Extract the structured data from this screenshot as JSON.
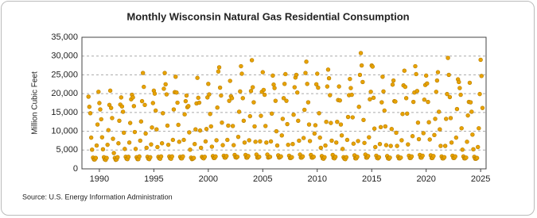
{
  "chart_data": {
    "type": "scatter",
    "title": "Monthly Wisconsin Natural Gas Residential Consumption",
    "y_label": "Million Cubic Feet",
    "source": "Source: U.S. Energy Information Administration",
    "color": "#e8a200",
    "grid": true,
    "xlim": [
      1988.4,
      2025.5
    ],
    "xticks": [
      1990,
      1995,
      2000,
      2005,
      2010,
      2015,
      2020,
      2025
    ],
    "ylim": [
      0,
      35000
    ],
    "yticks": [
      {
        "value": 0,
        "label": "0"
      },
      {
        "value": 5000,
        "label": "5,000"
      },
      {
        "value": 10000,
        "label": "10,000"
      },
      {
        "value": 15000,
        "label": "15,000"
      },
      {
        "value": 20000,
        "label": "20,000"
      },
      {
        "value": 25000,
        "label": "25,000"
      },
      {
        "value": 30000,
        "label": "30,000"
      },
      {
        "value": 35000,
        "label": "35,000"
      }
    ],
    "x": [
      1989.0,
      1989.08,
      1989.17,
      1989.25,
      1989.33,
      1989.42,
      1989.5,
      1989.58,
      1989.67,
      1989.75,
      1989.83,
      1989.92,
      1990.0,
      1990.08,
      1990.17,
      1990.25,
      1990.33,
      1990.42,
      1990.5,
      1990.58,
      1990.67,
      1990.75,
      1990.83,
      1990.92,
      1991.0,
      1991.08,
      1991.17,
      1991.25,
      1991.33,
      1991.42,
      1991.5,
      1991.58,
      1991.67,
      1991.75,
      1991.83,
      1991.92,
      1992.0,
      1992.08,
      1992.17,
      1992.25,
      1992.33,
      1992.42,
      1992.5,
      1992.58,
      1992.67,
      1992.75,
      1992.83,
      1992.92,
      1993.0,
      1993.08,
      1993.17,
      1993.25,
      1993.33,
      1993.42,
      1993.5,
      1993.58,
      1993.67,
      1993.75,
      1993.83,
      1993.92,
      1994.0,
      1994.08,
      1994.17,
      1994.25,
      1994.33,
      1994.42,
      1994.5,
      1994.58,
      1994.67,
      1994.75,
      1994.83,
      1994.92,
      1995.0,
      1995.08,
      1995.17,
      1995.25,
      1995.33,
      1995.42,
      1995.5,
      1995.58,
      1995.67,
      1995.75,
      1995.83,
      1995.92,
      1996.0,
      1996.08,
      1996.17,
      1996.25,
      1996.33,
      1996.42,
      1996.5,
      1996.58,
      1996.67,
      1996.75,
      1996.83,
      1996.92,
      1997.0,
      1997.08,
      1997.17,
      1997.25,
      1997.33,
      1997.42,
      1997.5,
      1997.58,
      1997.67,
      1997.75,
      1997.83,
      1997.92,
      1998.0,
      1998.08,
      1998.17,
      1998.25,
      1998.33,
      1998.42,
      1998.5,
      1998.58,
      1998.67,
      1998.75,
      1998.83,
      1998.92,
      1999.0,
      1999.08,
      1999.17,
      1999.25,
      1999.33,
      1999.42,
      1999.5,
      1999.58,
      1999.67,
      1999.75,
      1999.83,
      1999.92,
      2000.0,
      2000.08,
      2000.17,
      2000.25,
      2000.33,
      2000.42,
      2000.5,
      2000.58,
      2000.67,
      2000.75,
      2000.83,
      2000.92,
      2001.0,
      2001.08,
      2001.17,
      2001.25,
      2001.33,
      2001.42,
      2001.5,
      2001.58,
      2001.67,
      2001.75,
      2001.83,
      2001.92,
      2002.0,
      2002.08,
      2002.17,
      2002.25,
      2002.33,
      2002.42,
      2002.5,
      2002.58,
      2002.67,
      2002.75,
      2002.83,
      2002.92,
      2003.0,
      2003.08,
      2003.17,
      2003.25,
      2003.33,
      2003.42,
      2003.5,
      2003.58,
      2003.67,
      2003.75,
      2003.83,
      2003.92,
      2004.0,
      2004.08,
      2004.17,
      2004.25,
      2004.33,
      2004.42,
      2004.5,
      2004.58,
      2004.67,
      2004.75,
      2004.83,
      2004.92,
      2005.0,
      2005.08,
      2005.17,
      2005.25,
      2005.33,
      2005.42,
      2005.5,
      2005.58,
      2005.67,
      2005.75,
      2005.83,
      2005.92,
      2006.0,
      2006.08,
      2006.17,
      2006.25,
      2006.33,
      2006.42,
      2006.5,
      2006.58,
      2006.67,
      2006.75,
      2006.83,
      2006.92,
      2007.0,
      2007.08,
      2007.17,
      2007.25,
      2007.33,
      2007.42,
      2007.5,
      2007.58,
      2007.67,
      2007.75,
      2007.83,
      2007.92,
      2008.0,
      2008.08,
      2008.17,
      2008.25,
      2008.33,
      2008.42,
      2008.5,
      2008.58,
      2008.67,
      2008.75,
      2008.83,
      2008.92,
      2009.0,
      2009.08,
      2009.17,
      2009.25,
      2009.33,
      2009.42,
      2009.5,
      2009.58,
      2009.67,
      2009.75,
      2009.83,
      2009.92,
      2010.0,
      2010.08,
      2010.17,
      2010.25,
      2010.33,
      2010.42,
      2010.5,
      2010.58,
      2010.67,
      2010.75,
      2010.83,
      2010.92,
      2011.0,
      2011.08,
      2011.17,
      2011.25,
      2011.33,
      2011.42,
      2011.5,
      2011.58,
      2011.67,
      2011.75,
      2011.83,
      2011.92,
      2012.0,
      2012.08,
      2012.17,
      2012.25,
      2012.33,
      2012.42,
      2012.5,
      2012.58,
      2012.67,
      2012.75,
      2012.83,
      2012.92,
      2013.0,
      2013.08,
      2013.17,
      2013.25,
      2013.33,
      2013.42,
      2013.5,
      2013.58,
      2013.67,
      2013.75,
      2013.83,
      2013.92,
      2014.0,
      2014.08,
      2014.17,
      2014.25,
      2014.33,
      2014.42,
      2014.5,
      2014.58,
      2014.67,
      2014.75,
      2014.83,
      2014.92,
      2015.0,
      2015.08,
      2015.17,
      2015.25,
      2015.33,
      2015.42,
      2015.5,
      2015.58,
      2015.67,
      2015.75,
      2015.83,
      2015.92,
      2016.0,
      2016.08,
      2016.17,
      2016.25,
      2016.33,
      2016.42,
      2016.5,
      2016.58,
      2016.67,
      2016.75,
      2016.83,
      2016.92,
      2017.0,
      2017.08,
      2017.17,
      2017.25,
      2017.33,
      2017.42,
      2017.5,
      2017.58,
      2017.67,
      2017.75,
      2017.83,
      2017.92,
      2018.0,
      2018.08,
      2018.17,
      2018.25,
      2018.33,
      2018.42,
      2018.5,
      2018.58,
      2018.67,
      2018.75,
      2018.83,
      2018.92,
      2019.0,
      2019.08,
      2019.17,
      2019.25,
      2019.33,
      2019.42,
      2019.5,
      2019.58,
      2019.67,
      2019.75,
      2019.83,
      2019.92,
      2020.0,
      2020.08,
      2020.17,
      2020.25,
      2020.33,
      2020.42,
      2020.5,
      2020.58,
      2020.67,
      2020.75,
      2020.83,
      2020.92,
      2021.0,
      2021.08,
      2021.17,
      2021.25,
      2021.33,
      2021.42,
      2021.5,
      2021.58,
      2021.67,
      2021.75,
      2021.83,
      2021.92,
      2022.0,
      2022.08,
      2022.17,
      2022.25,
      2022.33,
      2022.42,
      2022.5,
      2022.58,
      2022.67,
      2022.75,
      2022.83,
      2022.92,
      2023.0,
      2023.08,
      2023.17,
      2023.25,
      2023.33,
      2023.42,
      2023.5,
      2023.58,
      2023.67,
      2023.75,
      2023.83,
      2023.92,
      2024.0,
      2024.08,
      2024.17,
      2024.25,
      2024.33,
      2024.42,
      2024.5,
      2024.58,
      2024.67,
      2024.75,
      2024.83,
      2024.92,
      2025.0,
      2025.08,
      2025.17
    ],
    "values": [
      19200,
      16500,
      14800,
      8300,
      5100,
      3000,
      2500,
      2500,
      2900,
      6200,
      11800,
      20500,
      17500,
      15800,
      13200,
      8400,
      5200,
      3100,
      2500,
      2400,
      2900,
      6400,
      10300,
      17000,
      20800,
      16200,
      13500,
      8000,
      4200,
      2900,
      2400,
      2500,
      3100,
      6800,
      12800,
      17100,
      19000,
      16600,
      15200,
      9600,
      5300,
      3200,
      2700,
      2600,
      3200,
      7000,
      12200,
      18500,
      19700,
      19000,
      16700,
      9800,
      5300,
      3100,
      2600,
      2600,
      3300,
      7500,
      12600,
      18000,
      25500,
      21800,
      17000,
      9400,
      5600,
      3200,
      2700,
      2600,
      3100,
      6500,
      11000,
      17500,
      20800,
      20000,
      15500,
      10500,
      5800,
      3200,
      2800,
      2700,
      3300,
      6800,
      14800,
      21300,
      25500,
      22500,
      19800,
      11500,
      6400,
      3300,
      2800,
      2700,
      3300,
      7700,
      15800,
      20400,
      24500,
      20300,
      17600,
      11700,
      7200,
      3200,
      2800,
      2800,
      3300,
      7700,
      14500,
      18000,
      19500,
      16400,
      16700,
      9700,
      5100,
      3000,
      2600,
      2700,
      2900,
      6600,
      10500,
      17400,
      24200,
      18900,
      17600,
      10200,
      5600,
      3200,
      2900,
      2800,
      3200,
      7300,
      10600,
      19000,
      22600,
      19800,
      14600,
      11300,
      5900,
      3400,
      2900,
      2900,
      3300,
      7600,
      16300,
      25900,
      27000,
      21600,
      19500,
      12300,
      6300,
      3500,
      3000,
      3000,
      3400,
      7700,
      11500,
      18100,
      23400,
      19300,
      18800,
      11400,
      6300,
      3700,
      3100,
      3000,
      3200,
      8500,
      15200,
      20600,
      27300,
      25300,
      18800,
      12800,
      7000,
      3700,
      3000,
      3000,
      3400,
      7600,
      14000,
      20700,
      28900,
      21700,
      17700,
      11300,
      7200,
      3800,
      3000,
      3000,
      3200,
      7300,
      14100,
      20500,
      25700,
      21000,
      19700,
      11400,
      7000,
      3800,
      3000,
      3100,
      3200,
      7300,
      14700,
      24800,
      22400,
      21500,
      18100,
      10000,
      6200,
      3600,
      3000,
      3100,
      3300,
      8900,
      13300,
      18800,
      22600,
      25200,
      18100,
      11900,
      6400,
      3500,
      2900,
      2900,
      3100,
      6600,
      14400,
      21700,
      24300,
      25000,
      20300,
      12800,
      7500,
      3800,
      3000,
      3000,
      3300,
      8200,
      15700,
      25500,
      28500,
      22600,
      17700,
      11800,
      7400,
      3700,
      3000,
      3000,
      3200,
      9400,
      11600,
      22500,
      25300,
      21600,
      14800,
      8300,
      5600,
      3400,
      2800,
      2700,
      3100,
      6200,
      12500,
      21900,
      26400,
      24100,
      19600,
      12200,
      7500,
      3700,
      2900,
      2800,
      3200,
      7000,
      12500,
      18300,
      21900,
      18200,
      11800,
      8900,
      5300,
      3100,
      2700,
      2600,
      3100,
      7700,
      13800,
      19600,
      23900,
      21500,
      19700,
      13700,
      6700,
      3600,
      2800,
      2800,
      3200,
      7400,
      16500,
      25000,
      30800,
      27500,
      23100,
      13000,
      6900,
      3800,
      3000,
      3000,
      3400,
      8400,
      18500,
      20500,
      27500,
      27200,
      18900,
      10700,
      5800,
      3500,
      2900,
      2800,
      3100,
      6600,
      11100,
      17700,
      24500,
      20600,
      15500,
      11300,
      6300,
      3400,
      2800,
      2700,
      3000,
      6100,
      10600,
      22400,
      23500,
      18000,
      17900,
      9600,
      6100,
      3300,
      2800,
      2800,
      3000,
      7600,
      14600,
      22200,
      26100,
      21800,
      18800,
      14700,
      6500,
      3500,
      2900,
      2900,
      3300,
      8700,
      17800,
      20300,
      27300,
      25200,
      20700,
      12300,
      7900,
      3700,
      3000,
      3000,
      3500,
      9500,
      18400,
      22300,
      24800,
      22700,
      17800,
      12400,
      7800,
      3600,
      2900,
      2900,
      3400,
      9000,
      13300,
      20500,
      23500,
      25700,
      15200,
      10500,
      6100,
      3300,
      2800,
      2800,
      3100,
      6100,
      13300,
      19900,
      29500,
      25000,
      19100,
      13500,
      7000,
      3500,
      2900,
      2900,
      3300,
      8300,
      15900,
      23800,
      23100,
      21500,
      19700,
      10800,
      5100,
      3300,
      2800,
      2800,
      3000,
      7200,
      14200,
      17800,
      22900,
      17700,
      15200,
      9100,
      5200,
      3200,
      2700,
      2700,
      2900,
      5800,
      10800,
      19900,
      29000,
      24700,
      16200
    ]
  }
}
